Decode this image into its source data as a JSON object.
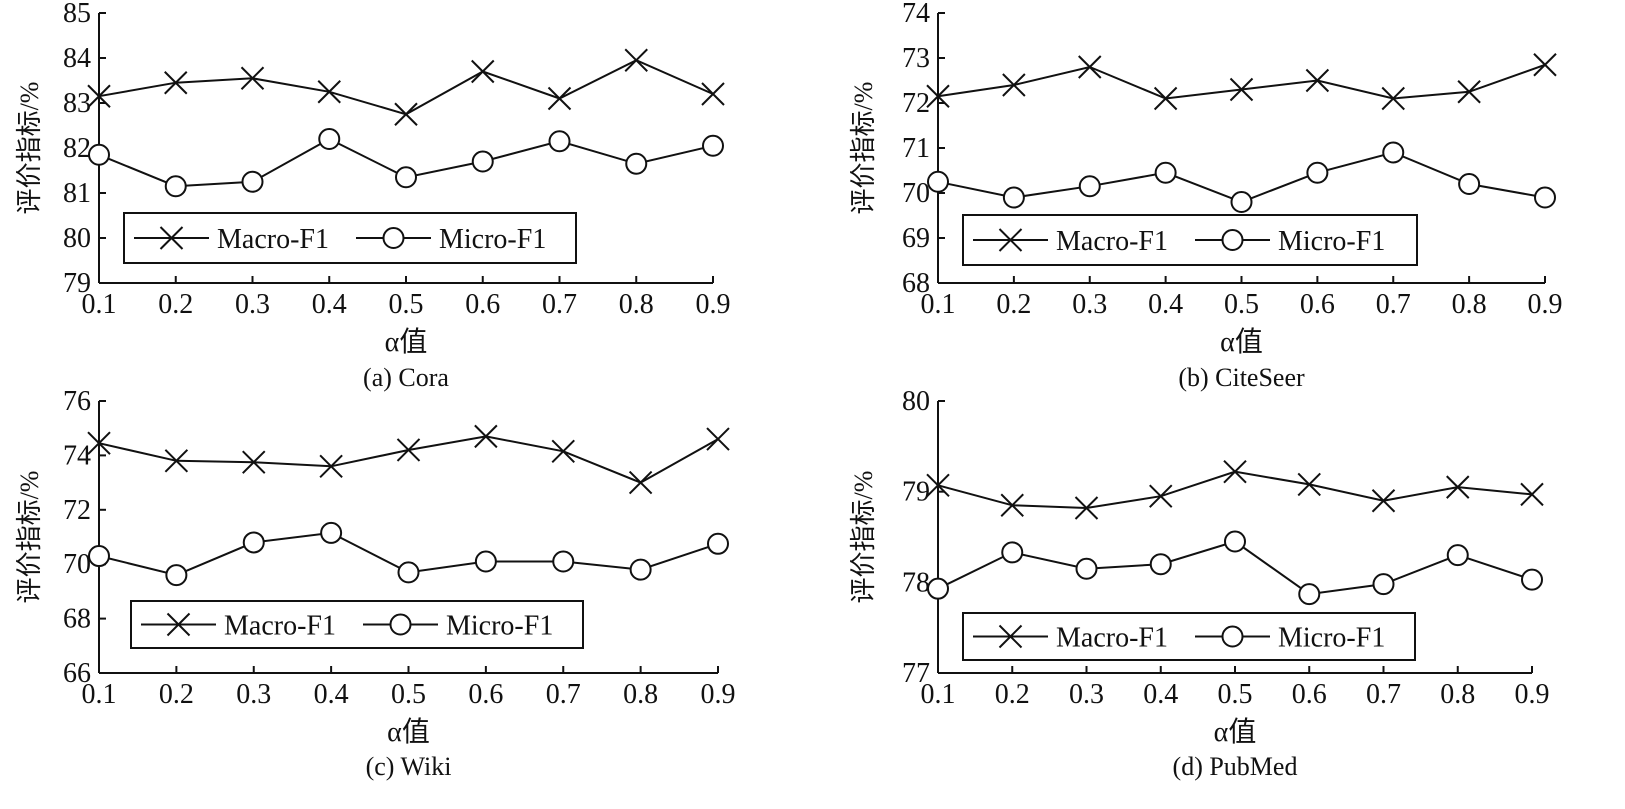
{
  "figure": {
    "marker_color": "#111111"
  },
  "chart_data": [
    {
      "type": "line",
      "title": "(a) Cora",
      "xlabel": "α值",
      "ylabel": "评价指标/%",
      "x": [
        0.1,
        0.2,
        0.3,
        0.4,
        0.5,
        0.6,
        0.7,
        0.8,
        0.9
      ],
      "x_tick_labels": [
        "0.1",
        "0.2",
        "0.3",
        "0.4",
        "0.5",
        "0.6",
        "0.7",
        "0.8",
        "0.9"
      ],
      "ylim": [
        79,
        85
      ],
      "y_ticks": [
        79,
        80,
        81,
        82,
        83,
        84,
        85
      ],
      "y_tick_labels": [
        "79",
        "80",
        "81",
        "82",
        "83",
        "84",
        "85"
      ],
      "series": [
        {
          "name": "Macro-F1",
          "marker": "x",
          "values": [
            83.15,
            83.45,
            83.55,
            83.25,
            82.75,
            83.7,
            83.1,
            83.95,
            83.2
          ]
        },
        {
          "name": "Micro-F1",
          "marker": "o",
          "values": [
            81.85,
            81.15,
            81.25,
            82.2,
            81.35,
            81.7,
            82.15,
            81.65,
            82.05
          ]
        }
      ],
      "legend": {
        "position": "lower-left",
        "entries": [
          "Macro-F1",
          "Micro-F1"
        ]
      },
      "grid": false
    },
    {
      "type": "line",
      "title": "(b) CiteSeer",
      "xlabel": "α值",
      "ylabel": "评价指标/%",
      "x": [
        0.1,
        0.2,
        0.3,
        0.4,
        0.5,
        0.6,
        0.7,
        0.8,
        0.9
      ],
      "x_tick_labels": [
        "0.1",
        "0.2",
        "0.3",
        "0.4",
        "0.5",
        "0.6",
        "0.7",
        "0.8",
        "0.9"
      ],
      "ylim": [
        68,
        74
      ],
      "y_ticks": [
        68,
        69,
        70,
        71,
        72,
        73,
        74
      ],
      "y_tick_labels": [
        "68",
        "69",
        "70",
        "71",
        "72",
        "73",
        "74"
      ],
      "series": [
        {
          "name": "Macro-F1",
          "marker": "x",
          "values": [
            72.15,
            72.4,
            72.8,
            72.1,
            72.3,
            72.5,
            72.1,
            72.25,
            72.85
          ]
        },
        {
          "name": "Micro-F1",
          "marker": "o",
          "values": [
            70.25,
            69.9,
            70.15,
            70.45,
            69.8,
            70.45,
            70.9,
            70.2,
            69.9
          ]
        }
      ],
      "legend": {
        "position": "lower-left",
        "entries": [
          "Macro-F1",
          "Micro-F1"
        ]
      },
      "grid": false
    },
    {
      "type": "line",
      "title": "(c) Wiki",
      "xlabel": "α值",
      "ylabel": "评价指标/%",
      "x": [
        0.1,
        0.2,
        0.3,
        0.4,
        0.5,
        0.6,
        0.7,
        0.8,
        0.9
      ],
      "x_tick_labels": [
        "0.1",
        "0.2",
        "0.3",
        "0.4",
        "0.5",
        "0.6",
        "0.7",
        "0.8",
        "0.9"
      ],
      "ylim": [
        66,
        76
      ],
      "y_ticks": [
        66,
        68,
        70,
        72,
        74,
        76
      ],
      "y_tick_labels": [
        "66",
        "68",
        "70",
        "72",
        "74",
        "76"
      ],
      "series": [
        {
          "name": "Macro-F1",
          "marker": "x",
          "values": [
            74.45,
            73.8,
            73.75,
            73.6,
            74.2,
            74.7,
            74.15,
            73.0,
            74.6
          ]
        },
        {
          "name": "Micro-F1",
          "marker": "o",
          "values": [
            70.3,
            69.6,
            70.8,
            71.15,
            69.7,
            70.1,
            70.1,
            69.8,
            70.75
          ]
        }
      ],
      "legend": {
        "position": "lower-left",
        "entries": [
          "Macro-F1",
          "Micro-F1"
        ]
      },
      "grid": false
    },
    {
      "type": "line",
      "title": "(d) PubMed",
      "xlabel": "α值",
      "ylabel": "评价指标/%",
      "x": [
        0.1,
        0.2,
        0.3,
        0.4,
        0.5,
        0.6,
        0.7,
        0.8,
        0.9
      ],
      "x_tick_labels": [
        "0.1",
        "0.2",
        "0.3",
        "0.4",
        "0.5",
        "0.6",
        "0.7",
        "0.8",
        "0.9"
      ],
      "ylim": [
        77,
        80
      ],
      "y_ticks": [
        77,
        78,
        79,
        80
      ],
      "y_tick_labels": [
        "77",
        "78",
        "79",
        "80"
      ],
      "series": [
        {
          "name": "Macro-F1",
          "marker": "x",
          "values": [
            79.07,
            78.85,
            78.82,
            78.95,
            79.22,
            79.08,
            78.9,
            79.05,
            78.97
          ]
        },
        {
          "name": "Micro-F1",
          "marker": "o",
          "values": [
            77.93,
            78.33,
            78.15,
            78.2,
            78.45,
            77.87,
            77.98,
            78.3,
            78.03
          ]
        }
      ],
      "legend": {
        "position": "lower-left",
        "entries": [
          "Macro-F1",
          "Micro-F1"
        ]
      },
      "grid": false
    }
  ]
}
